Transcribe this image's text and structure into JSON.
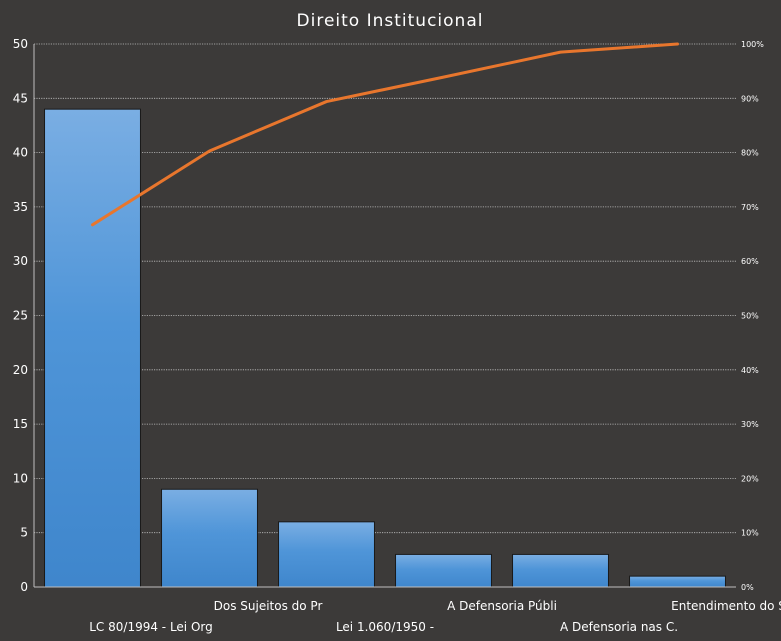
{
  "chart_data": {
    "type": "bar",
    "title": "Direito Institucional",
    "categories": [
      "LC 80/1994 - Lei Org",
      "Dos Sujeitos do Pr",
      "Lei 1.060/1950 -",
      "A Defensoria Públi",
      "A Defensoria nas C.",
      "Entendimento  do ST ."
    ],
    "series": [
      {
        "type": "bar",
        "values": [
          44,
          9,
          6,
          3,
          3,
          1
        ]
      },
      {
        "type": "line",
        "axis": "secondary",
        "values": [
          66.7,
          80.3,
          89.4,
          93.9,
          98.5,
          100
        ]
      }
    ],
    "ylim": [
      0,
      50
    ],
    "yticks": [
      0,
      5,
      10,
      15,
      20,
      25,
      30,
      35,
      40,
      45,
      50
    ],
    "y2lim": [
      0,
      100
    ],
    "y2ticks": [
      "0%",
      "10%",
      "20%",
      "30%",
      "40%",
      "50%",
      "60%",
      "70%",
      "80%",
      "90%",
      "100%"
    ],
    "grid": true,
    "legend": "none",
    "colors": {
      "background": "#3c3a39",
      "bar": "#4a8fd4",
      "line": "#e8762d",
      "grid": "#bfbfbf",
      "text": "#ffffff"
    }
  }
}
